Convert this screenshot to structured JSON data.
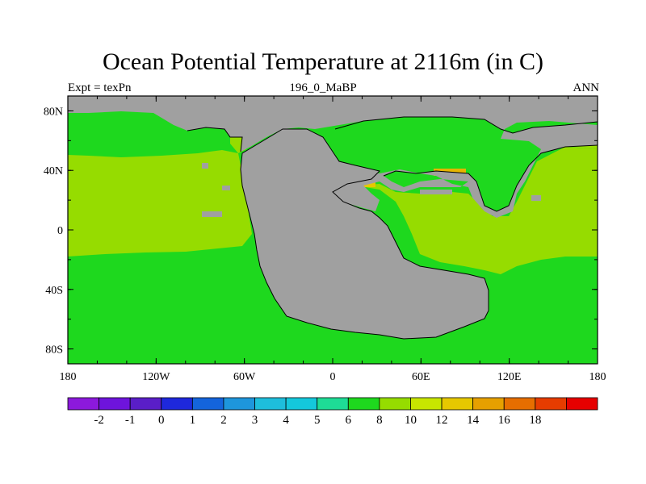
{
  "title": "Ocean Potential Temperature at 2116m (in C)",
  "subtitle": {
    "left": "Expt = texPn",
    "center": "196_0_MaBP",
    "right": "ANN"
  },
  "map": {
    "x_ticks": [
      "180",
      "120W",
      "60W",
      "0",
      "60E",
      "120E",
      "180"
    ],
    "y_ticks": [
      "80N",
      "40N",
      "0",
      "40S",
      "80S"
    ],
    "land_color": "#a0a0a0",
    "ocean_colors": {
      "6_to_8": "#1ed81e",
      "8_to_10": "#96dc00",
      "12_to_14": "#e6b400"
    }
  },
  "colorbar": {
    "colors": [
      "#8c19dc",
      "#6e14dc",
      "#5a1ec8",
      "#1e28dc",
      "#1464dc",
      "#1e96dc",
      "#1ebedc",
      "#14c8dc",
      "#1edc96",
      "#1ed81e",
      "#96dc00",
      "#c8e600",
      "#e6c800",
      "#e6a000",
      "#e66e00",
      "#e63c00",
      "#e60000"
    ],
    "labels": [
      "-2",
      "-1",
      "0",
      "1",
      "2",
      "3",
      "4",
      "5",
      "6",
      "8",
      "10",
      "12",
      "14",
      "16",
      "18"
    ]
  }
}
